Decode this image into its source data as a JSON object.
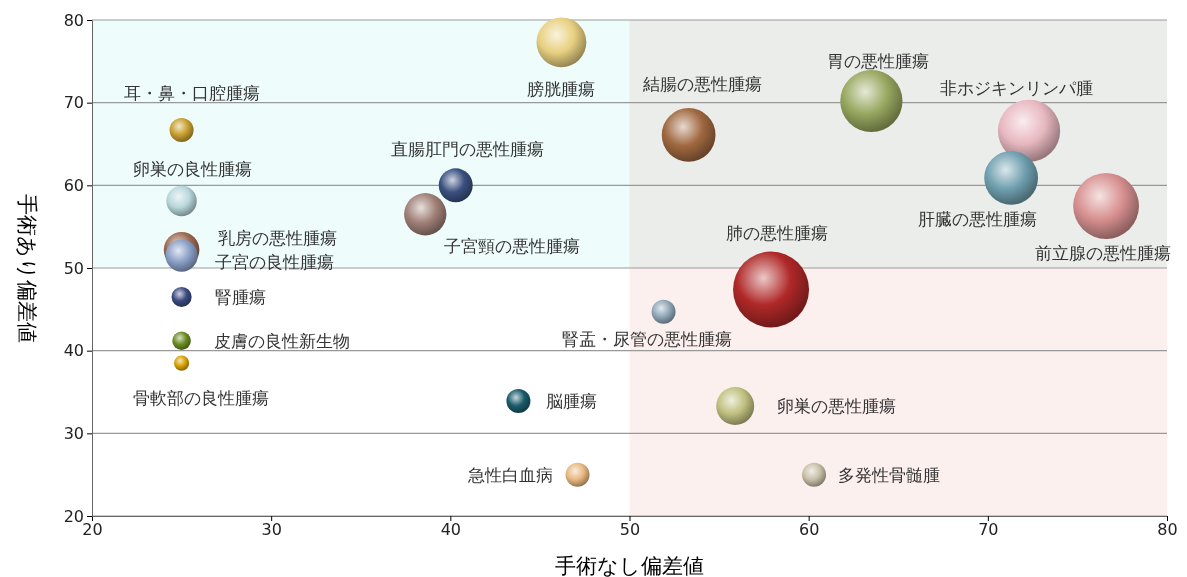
{
  "chart_data": {
    "type": "bubble",
    "xlabel": "手術なし偏差値",
    "ylabel": "手術あり偏差値",
    "xlim": [
      20,
      80
    ],
    "ylim": [
      20,
      80
    ],
    "xticks": [
      20,
      30,
      40,
      50,
      60,
      70,
      80
    ],
    "yticks": [
      20,
      30,
      40,
      50,
      60,
      70,
      80
    ],
    "grid": "y",
    "legend": false,
    "bands": [
      {
        "axis": "y",
        "from": 50,
        "to": 80,
        "color": "#eefcfc"
      },
      {
        "axis": "x",
        "from": 50,
        "to": 80,
        "color": "#fcf0ee"
      }
    ],
    "series": [
      {
        "name": "耳・鼻・口腔腫瘍",
        "color": "#c8a030",
        "x": [
          25.0
        ],
        "values": [
          66.7
        ],
        "sizes": [
          0.1
        ]
      },
      {
        "name": "卵巣の良性腫瘍",
        "color": "#b8d8dc",
        "x": [
          25.0
        ],
        "values": [
          58.1
        ],
        "sizes": [
          0.16
        ]
      },
      {
        "name": "乳房の悪性腫瘍",
        "color": "#9a6a50",
        "x": [
          25.0
        ],
        "values": [
          52.2
        ],
        "sizes": [
          0.22
        ]
      },
      {
        "name": "子宮の良性腫瘍",
        "color": "#8aa0c8",
        "x": [
          25.0
        ],
        "values": [
          51.5
        ],
        "sizes": [
          0.18
        ]
      },
      {
        "name": "腎腫瘍",
        "color": "#3a4a80",
        "x": [
          25.0
        ],
        "values": [
          46.5
        ],
        "sizes": [
          0.07
        ]
      },
      {
        "name": "皮膚の良性新生物",
        "color": "#6a8a20",
        "x": [
          25.0
        ],
        "values": [
          41.2
        ],
        "sizes": [
          0.06
        ]
      },
      {
        "name": "骨軟部の良性腫瘍",
        "color": "#d8a000",
        "x": [
          25.0
        ],
        "values": [
          38.5
        ],
        "sizes": [
          0.04
        ]
      },
      {
        "name": "膀胱腫瘍",
        "color": "#e8d080",
        "x": [
          46.2
        ],
        "values": [
          77.3
        ],
        "sizes": [
          0.43
        ]
      },
      {
        "name": "直腸肛門の悪性腫瘍",
        "color": "#3a5080",
        "x": [
          40.3
        ],
        "values": [
          60.0
        ],
        "sizes": [
          0.2
        ]
      },
      {
        "name": "子宮頸の悪性腫瘍",
        "color": "#a08078",
        "x": [
          38.6
        ],
        "values": [
          56.5
        ],
        "sizes": [
          0.31
        ]
      },
      {
        "name": "脳腫瘍",
        "color": "#1a5a6a",
        "x": [
          43.8
        ],
        "values": [
          33.9
        ],
        "sizes": [
          0.1
        ]
      },
      {
        "name": "急性白血病",
        "color": "#e8b880",
        "x": [
          47.1
        ],
        "values": [
          25.0
        ],
        "sizes": [
          0.1
        ]
      },
      {
        "name": "結腸の悪性腫瘍",
        "color": "#a06840",
        "x": [
          53.3
        ],
        "values": [
          66.1
        ],
        "sizes": [
          0.5
        ]
      },
      {
        "name": "胃の悪性腫瘍",
        "color": "#98a860",
        "x": [
          63.5
        ],
        "values": [
          70.2
        ],
        "sizes": [
          0.67
        ]
      },
      {
        "name": "非ホジキンリンパ腫",
        "color": "#e8b8c0",
        "x": [
          72.3
        ],
        "values": [
          66.6
        ],
        "sizes": [
          0.67
        ]
      },
      {
        "name": "肝臓の悪性腫瘍",
        "color": "#70a0b0",
        "x": [
          71.3
        ],
        "values": [
          60.9
        ],
        "sizes": [
          0.5
        ]
      },
      {
        "name": "前立腺の悪性腫瘍",
        "color": "#d89090",
        "x": [
          76.6
        ],
        "values": [
          57.5
        ],
        "sizes": [
          0.75
        ]
      },
      {
        "name": "肺の悪性腫瘍",
        "color": "#b02828",
        "x": [
          57.9
        ],
        "values": [
          47.4
        ],
        "sizes": [
          1.0
        ]
      },
      {
        "name": "腎盂・尿管の悪性腫瘍",
        "color": "#90a8b8",
        "x": [
          51.9
        ],
        "values": [
          44.7
        ],
        "sizes": [
          0.1
        ]
      },
      {
        "name": "卵巣の悪性腫瘍",
        "color": "#c0c080",
        "x": [
          55.9
        ],
        "values": [
          33.3
        ],
        "sizes": [
          0.25
        ]
      },
      {
        "name": "多発性骨髄腫",
        "color": "#c8c0a8",
        "x": [
          60.3
        ],
        "values": [
          25.0
        ],
        "sizes": [
          0.1
        ]
      }
    ]
  }
}
